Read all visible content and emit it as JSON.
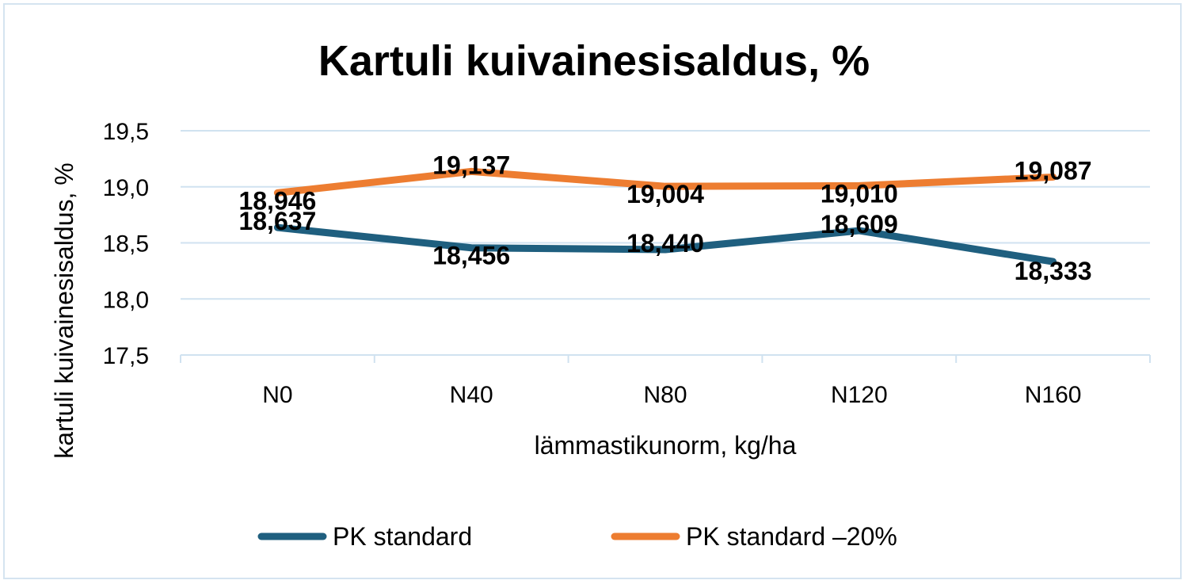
{
  "chart_data": {
    "type": "line",
    "title": "Kartuli kuivainesisaldus, %",
    "xlabel": "lämmastikunorm, kg/ha",
    "ylabel": "kartuli kuivainesisaldus, %",
    "categories": [
      "N0",
      "N40",
      "N80",
      "N120",
      "N160"
    ],
    "ylim": [
      17.5,
      19.5
    ],
    "yticks": [
      "17,5",
      "18,0",
      "18,5",
      "19,0",
      "19,5"
    ],
    "grid": true,
    "legend_position": "bottom",
    "series": [
      {
        "name": "PK standard",
        "color": "#1f5f7f",
        "values": [
          18.637,
          18.456,
          18.44,
          18.609,
          18.333
        ],
        "labels": [
          "18,637",
          "18,456",
          "18,440",
          "18,609",
          "18,333"
        ]
      },
      {
        "name": "PK standard –20%",
        "color": "#ed7d31",
        "values": [
          18.946,
          19.137,
          19.004,
          19.01,
          19.087
        ],
        "labels": [
          "18,946",
          "19,137",
          "19,004",
          "19,010",
          "19,087"
        ]
      }
    ]
  }
}
